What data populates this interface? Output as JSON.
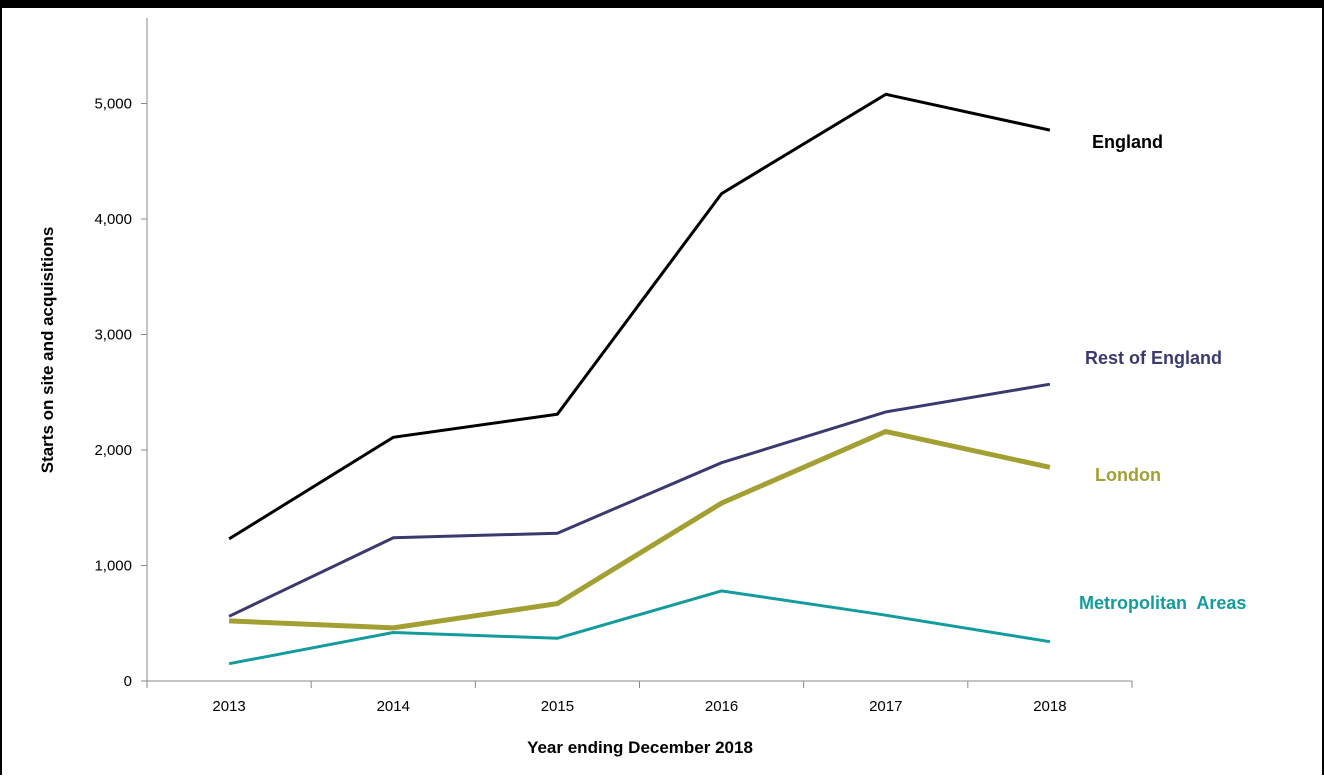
{
  "chart_data": {
    "type": "line",
    "title": "",
    "xlabel": "Year ending December 2018",
    "ylabel": "Starts on site and acquisitions",
    "categories": [
      "2013",
      "2014",
      "2015",
      "2016",
      "2017",
      "2018"
    ],
    "ylim": [
      0,
      5000
    ],
    "yticks": [
      0,
      1000,
      2000,
      3000,
      4000,
      5000
    ],
    "ytick_labels": [
      "0",
      "1,000",
      "2,000",
      "3,000",
      "4,000",
      "5,000"
    ],
    "grid": false,
    "legend": "direct labels at line ends",
    "series": [
      {
        "name": "England",
        "color": "#000000",
        "values": [
          1230,
          2110,
          2310,
          4220,
          5080,
          4770
        ]
      },
      {
        "name": "Rest of England",
        "color": "#3b3a6e",
        "values": [
          560,
          1240,
          1280,
          1890,
          2330,
          2570
        ]
      },
      {
        "name": "London",
        "color": "#a3a033",
        "values": [
          520,
          460,
          670,
          1540,
          2160,
          1850
        ]
      },
      {
        "name": "Metropolitan  Areas",
        "color": "#139c9b",
        "values": [
          150,
          420,
          370,
          780,
          570,
          340
        ]
      }
    ]
  }
}
